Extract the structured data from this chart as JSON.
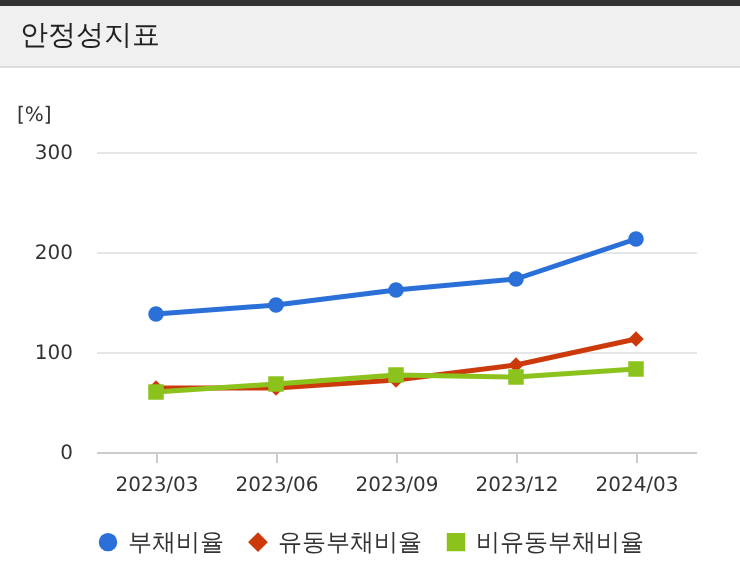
{
  "chart_data": {
    "type": "line",
    "title": "안정성지표",
    "ylabel": "[%]",
    "categories": [
      "2023/03",
      "2023/06",
      "2023/09",
      "2023/12",
      "2024/03"
    ],
    "series": [
      {
        "name": "부채비율",
        "color": "#2b6fd8",
        "marker": "circle",
        "values": [
          138,
          147,
          162,
          173,
          213
        ]
      },
      {
        "name": "유동부채비율",
        "color": "#cc3a0c",
        "marker": "diamond",
        "values": [
          64,
          64,
          72,
          87,
          113
        ]
      },
      {
        "name": "비유동부채비율",
        "color": "#8cc21c",
        "marker": "square",
        "values": [
          60,
          68,
          77,
          75,
          83
        ]
      }
    ],
    "ylim": [
      0,
      300
    ],
    "yticks": [
      0,
      100,
      200,
      300
    ],
    "grid": "y",
    "legend": "bottom"
  }
}
